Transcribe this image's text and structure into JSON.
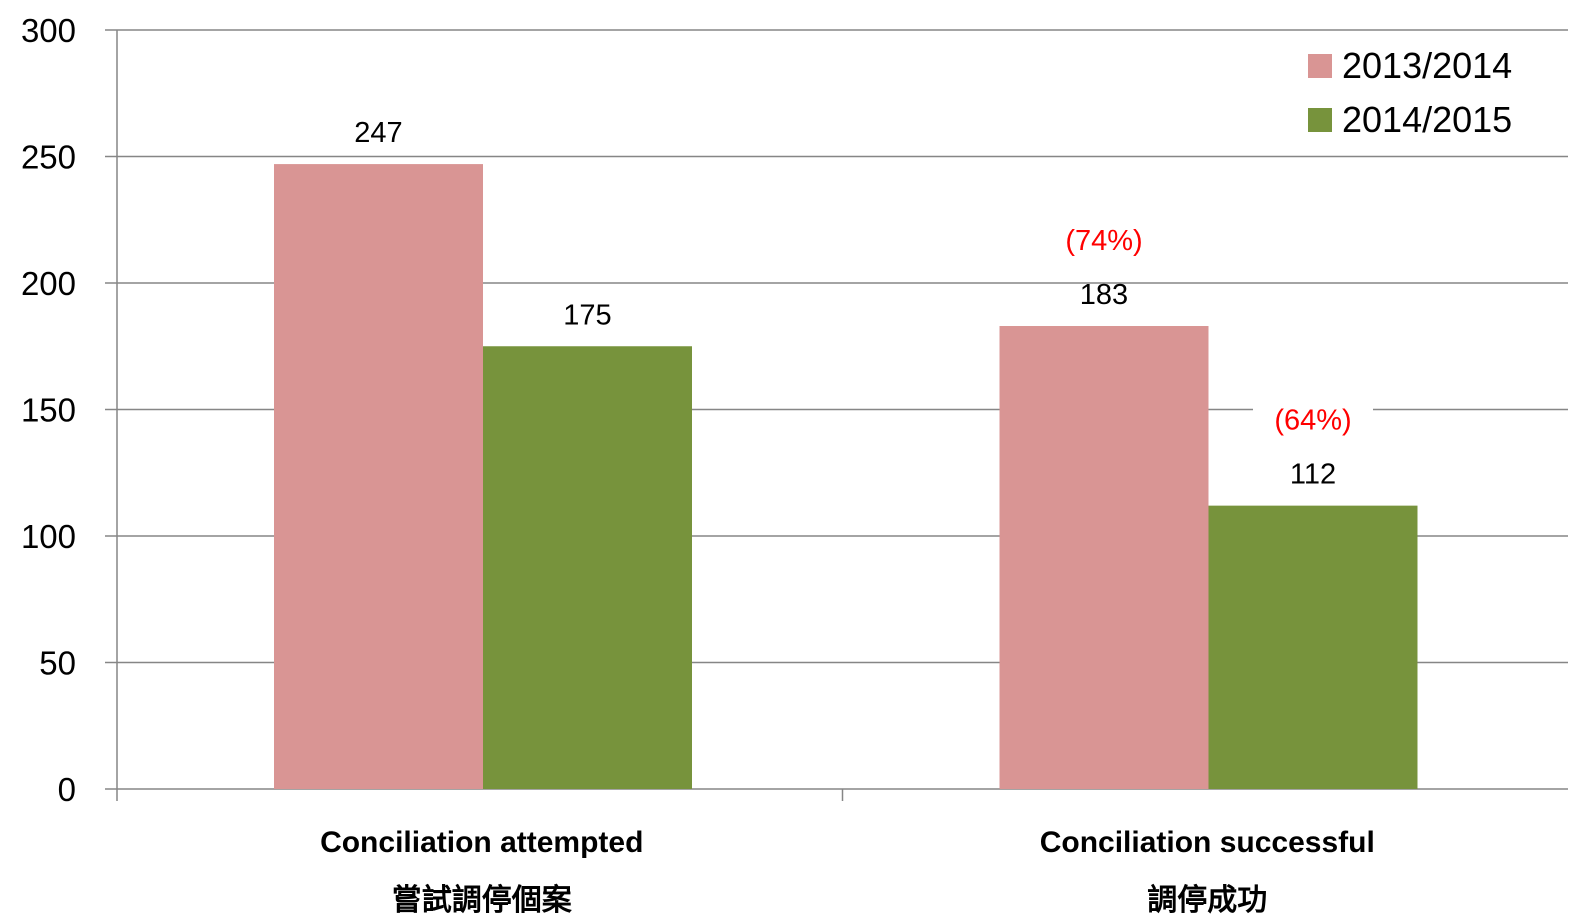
{
  "chart_data": {
    "type": "bar",
    "categories": [
      [
        "Conciliation attempted",
        "嘗試調停個案"
      ],
      [
        "Conciliation successful",
        "調停成功"
      ]
    ],
    "series": [
      {
        "name": "2013/2014",
        "values": [
          247,
          183
        ],
        "color": "#d99594"
      },
      {
        "name": "2014/2015",
        "values": [
          175,
          112
        ],
        "color": "#77933c"
      }
    ],
    "annotations": [
      {
        "category": 1,
        "series": 0,
        "text": "(74%)",
        "color": "#ff0000"
      },
      {
        "category": 1,
        "series": 1,
        "text": "(64%)",
        "color": "#ff0000"
      }
    ],
    "ylim": [
      0,
      300
    ],
    "yticks": [
      0,
      50,
      100,
      150,
      200,
      250,
      300
    ],
    "grid": true,
    "legend_position": "top-right",
    "title": "",
    "xlabel": "",
    "ylabel": ""
  }
}
